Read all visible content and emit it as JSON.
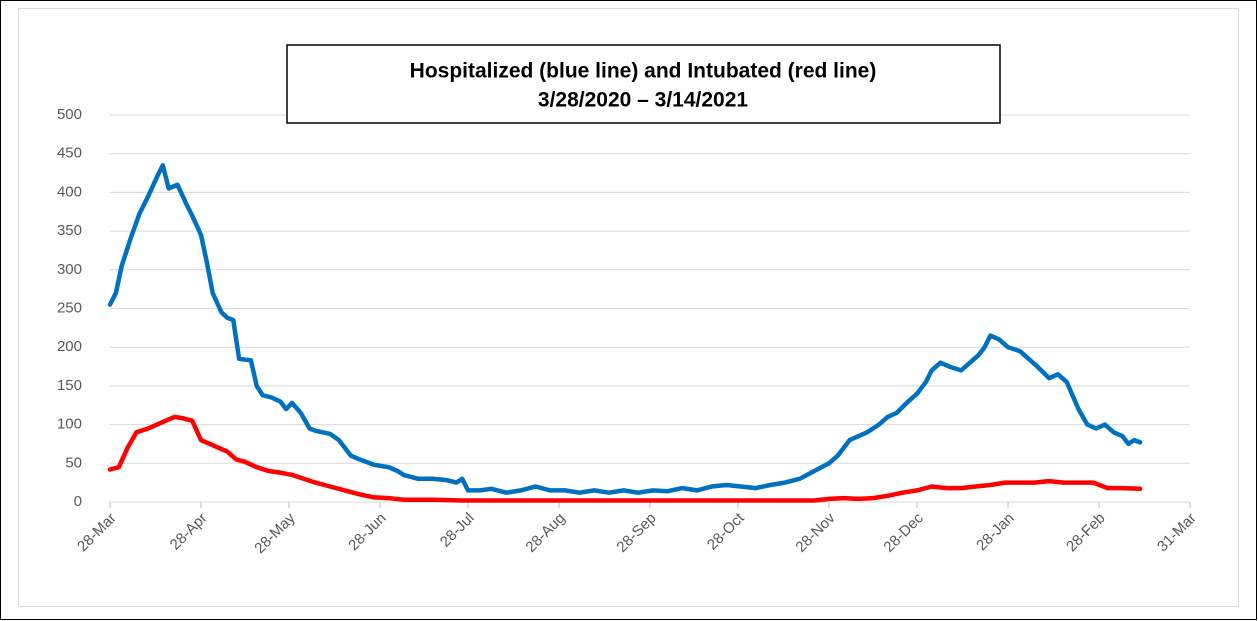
{
  "chart_data": {
    "type": "line",
    "title": "Hospitalized (blue line) and Intubated (red line)",
    "subtitle": "3/28/2020 – 3/14/2021",
    "xlim": [
      0,
      368
    ],
    "xticks": [
      {
        "value": 0,
        "label": "28-Mar"
      },
      {
        "value": 31,
        "label": "28-Apr"
      },
      {
        "value": 61,
        "label": "28-May"
      },
      {
        "value": 92,
        "label": "28-Jun"
      },
      {
        "value": 122,
        "label": "28-Jul"
      },
      {
        "value": 153,
        "label": "28-Aug"
      },
      {
        "value": 184,
        "label": "28-Sep"
      },
      {
        "value": 214,
        "label": "28-Oct"
      },
      {
        "value": 245,
        "label": "28-Nov"
      },
      {
        "value": 275,
        "label": "28-Dec"
      },
      {
        "value": 306,
        "label": "28-Jan"
      },
      {
        "value": 337,
        "label": "28-Feb"
      },
      {
        "value": 368,
        "label": "31-Mar"
      }
    ],
    "ylim": [
      0,
      500
    ],
    "yticks": [
      0,
      50,
      100,
      150,
      200,
      250,
      300,
      350,
      400,
      450,
      500
    ],
    "grid": true,
    "series": [
      {
        "color": "#0070c0",
        "x": [
          0,
          2,
          4,
          7,
          10,
          13,
          16,
          18,
          20,
          23,
          26,
          28,
          31,
          33,
          35,
          38,
          40,
          42,
          44,
          48,
          50,
          52,
          55,
          58,
          60,
          62,
          65,
          68,
          70,
          75,
          78,
          80,
          82,
          85,
          90,
          95,
          98,
          100,
          105,
          110,
          115,
          118,
          120,
          122,
          126,
          130,
          135,
          140,
          145,
          150,
          155,
          160,
          165,
          170,
          175,
          180,
          185,
          190,
          195,
          200,
          205,
          210,
          215,
          220,
          225,
          230,
          235,
          240,
          245,
          248,
          252,
          255,
          258,
          262,
          265,
          268,
          272,
          275,
          278,
          280,
          283,
          286,
          290,
          293,
          296,
          298,
          300,
          303,
          306,
          310,
          313,
          316,
          320,
          323,
          326,
          330,
          333,
          336,
          339,
          342,
          345,
          347,
          349,
          351
        ],
        "values": [
          255,
          270,
          305,
          340,
          372,
          395,
          420,
          435,
          405,
          410,
          385,
          370,
          345,
          310,
          270,
          245,
          238,
          235,
          185,
          183,
          150,
          138,
          135,
          130,
          120,
          128,
          115,
          95,
          92,
          88,
          80,
          70,
          60,
          55,
          48,
          45,
          40,
          35,
          30,
          30,
          28,
          25,
          30,
          15,
          15,
          17,
          12,
          15,
          20,
          15,
          15,
          12,
          15,
          12,
          15,
          12,
          15,
          14,
          18,
          15,
          20,
          22,
          20,
          18,
          22,
          25,
          30,
          40,
          50,
          60,
          80,
          85,
          90,
          100,
          110,
          115,
          130,
          140,
          155,
          170,
          180,
          175,
          170,
          180,
          190,
          200,
          215,
          210,
          200,
          195,
          185,
          175,
          160,
          165,
          155,
          120,
          100,
          95,
          100,
          90,
          85,
          75,
          80,
          77
        ]
      },
      {
        "color": "#ff0000",
        "x": [
          0,
          3,
          6,
          9,
          13,
          16,
          19,
          22,
          25,
          28,
          31,
          34,
          37,
          40,
          43,
          46,
          50,
          54,
          58,
          62,
          66,
          70,
          75,
          80,
          85,
          90,
          95,
          100,
          110,
          120,
          130,
          160,
          200,
          240,
          245,
          250,
          255,
          260,
          265,
          270,
          275,
          280,
          285,
          290,
          295,
          300,
          305,
          310,
          315,
          320,
          325,
          330,
          335,
          340,
          345,
          351
        ],
        "values": [
          42,
          45,
          70,
          90,
          95,
          100,
          105,
          110,
          108,
          105,
          80,
          75,
          70,
          65,
          55,
          52,
          45,
          40,
          38,
          35,
          30,
          25,
          20,
          15,
          10,
          6,
          5,
          3,
          3,
          2,
          2,
          2,
          2,
          2,
          4,
          5,
          4,
          5,
          8,
          12,
          15,
          20,
          18,
          18,
          20,
          22,
          25,
          25,
          25,
          27,
          25,
          25,
          25,
          18,
          18,
          17
        ]
      }
    ]
  }
}
